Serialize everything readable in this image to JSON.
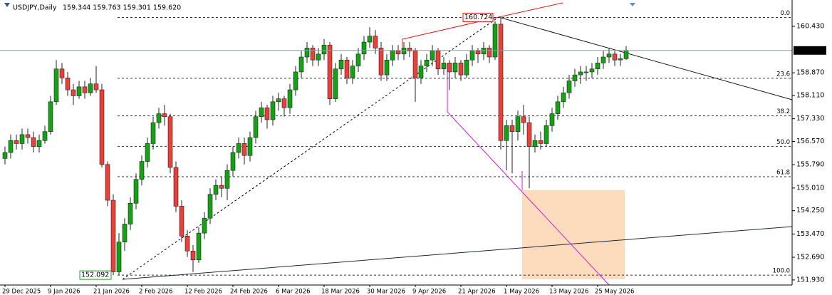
{
  "chart_data": {
    "type": "candlestick",
    "symbol": "USDJPY,Daily",
    "header_ohlc": "159.344 159.763 159.301 159.620",
    "bull_color": "#12a312",
    "bear_color": "#e8403a",
    "ylim": [
      151.76,
      161.31
    ],
    "yticks": [
      {
        "value": 160.43,
        "label": "160.430"
      },
      {
        "value": 158.87,
        "label": "158.870"
      },
      {
        "value": 158.11,
        "label": "158.110"
      },
      {
        "value": 157.33,
        "label": "157.330"
      },
      {
        "value": 156.57,
        "label": "156.570"
      },
      {
        "value": 155.79,
        "label": "155.790"
      },
      {
        "value": 155.01,
        "label": "155.010"
      },
      {
        "value": 154.25,
        "label": "154.250"
      },
      {
        "value": 153.47,
        "label": "153.470"
      },
      {
        "value": 152.69,
        "label": "152.690"
      },
      {
        "value": 151.93,
        "label": "151.930"
      }
    ],
    "current_price": {
      "value": 159.62,
      "label": "159.620"
    },
    "fib": {
      "high": 160.724,
      "low": 152.092,
      "levels": [
        {
          "value": 0,
          "label": "0.0"
        },
        23.6,
        38.2,
        {
          "value": 50,
          "label": "50.0"
        },
        61.8,
        {
          "value": 100,
          "label": "100.0"
        }
      ]
    },
    "categories": [
      "29 Dec 2025",
      null,
      null,
      null,
      null,
      null,
      null,
      null,
      "9 Jan 2026",
      null,
      null,
      null,
      null,
      null,
      null,
      null,
      "21 Jan 2026",
      null,
      null,
      null,
      null,
      null,
      null,
      null,
      "2 Feb 2026",
      null,
      null,
      null,
      null,
      null,
      null,
      null,
      "12 Feb 2026",
      null,
      null,
      null,
      null,
      null,
      null,
      null,
      "24 Feb 2026",
      null,
      null,
      null,
      null,
      null,
      null,
      null,
      "6 Mar 2026",
      null,
      null,
      null,
      null,
      null,
      null,
      null,
      "18 Mar 2026",
      null,
      null,
      null,
      null,
      null,
      null,
      null,
      "30 Mar 2026",
      null,
      null,
      null,
      null,
      null,
      null,
      null,
      "9 Apr 2026",
      null,
      null,
      null,
      null,
      null,
      null,
      null,
      "21 Apr 2026",
      null,
      null,
      null,
      null,
      null,
      null,
      null,
      "1 May 2026",
      null,
      null,
      null,
      null,
      null,
      null,
      null,
      "13 May 2026",
      null,
      null,
      null,
      null,
      null,
      null,
      null,
      "25 May 2026",
      null,
      null,
      null,
      null,
      null
    ],
    "candles": [
      [
        156.0,
        156.4,
        155.8,
        156.2
      ],
      [
        156.2,
        156.8,
        156.0,
        156.6
      ],
      [
        156.6,
        156.8,
        156.3,
        156.5
      ],
      [
        156.5,
        157.0,
        156.3,
        156.8
      ],
      [
        156.8,
        157.0,
        156.5,
        156.7
      ],
      [
        156.7,
        156.9,
        156.2,
        156.4
      ],
      [
        156.4,
        156.8,
        156.2,
        156.6
      ],
      [
        156.6,
        157.1,
        156.5,
        156.9
      ],
      [
        156.9,
        158.1,
        156.8,
        157.9
      ],
      [
        157.9,
        159.3,
        157.8,
        159.0
      ],
      [
        159.0,
        159.2,
        158.5,
        158.7
      ],
      [
        158.7,
        158.9,
        158.1,
        158.3
      ],
      [
        158.3,
        158.5,
        157.8,
        158.1
      ],
      [
        158.1,
        158.6,
        158.0,
        158.4
      ],
      [
        158.4,
        158.6,
        158.0,
        158.2
      ],
      [
        158.2,
        158.7,
        158.1,
        158.5
      ],
      [
        158.5,
        159.1,
        158.2,
        158.3
      ],
      [
        158.3,
        158.5,
        155.7,
        155.8
      ],
      [
        155.8,
        155.9,
        154.4,
        154.6
      ],
      [
        154.6,
        154.8,
        152.092,
        152.2
      ],
      [
        152.2,
        153.5,
        152.1,
        153.2
      ],
      [
        153.2,
        154.0,
        152.9,
        153.8
      ],
      [
        153.8,
        154.7,
        153.6,
        154.5
      ],
      [
        154.5,
        155.5,
        154.3,
        155.3
      ],
      [
        155.3,
        156.1,
        155.1,
        155.9
      ],
      [
        155.9,
        156.7,
        155.7,
        156.5
      ],
      [
        156.5,
        157.4,
        156.3,
        157.2
      ],
      [
        157.2,
        157.7,
        157.0,
        157.5
      ],
      [
        157.5,
        157.8,
        157.1,
        157.4
      ],
      [
        157.4,
        157.5,
        155.5,
        155.7
      ],
      [
        155.7,
        155.9,
        154.2,
        154.4
      ],
      [
        154.4,
        154.6,
        153.2,
        153.4
      ],
      [
        153.4,
        153.6,
        152.7,
        152.9
      ],
      [
        152.9,
        153.1,
        152.2,
        152.6
      ],
      [
        152.6,
        153.7,
        152.5,
        153.5
      ],
      [
        153.5,
        154.2,
        153.3,
        154.0
      ],
      [
        154.0,
        155.0,
        153.8,
        154.8
      ],
      [
        154.8,
        155.3,
        154.6,
        155.1
      ],
      [
        155.1,
        155.4,
        154.7,
        155.0
      ],
      [
        155.0,
        155.8,
        154.6,
        155.6
      ],
      [
        155.6,
        156.4,
        155.4,
        156.2
      ],
      [
        156.2,
        156.7,
        156.0,
        156.5
      ],
      [
        156.5,
        156.7,
        155.8,
        156.1
      ],
      [
        156.1,
        156.9,
        155.9,
        156.7
      ],
      [
        156.7,
        157.6,
        156.5,
        157.4
      ],
      [
        157.4,
        157.9,
        157.2,
        157.7
      ],
      [
        157.7,
        157.8,
        157.0,
        157.3
      ],
      [
        157.3,
        158.1,
        157.1,
        157.9
      ],
      [
        157.9,
        158.2,
        157.6,
        158.0
      ],
      [
        158.0,
        158.1,
        157.4,
        157.7
      ],
      [
        157.7,
        158.5,
        157.5,
        158.3
      ],
      [
        158.3,
        159.1,
        158.1,
        158.9
      ],
      [
        158.9,
        159.6,
        158.7,
        159.4
      ],
      [
        159.4,
        159.9,
        159.2,
        159.7
      ],
      [
        159.7,
        159.8,
        159.1,
        159.3
      ],
      [
        159.3,
        159.7,
        159.1,
        159.5
      ],
      [
        159.5,
        160.0,
        159.3,
        159.8
      ],
      [
        159.8,
        159.9,
        157.8,
        158.0
      ],
      [
        158.0,
        159.2,
        157.9,
        159.0
      ],
      [
        159.0,
        159.5,
        158.8,
        159.3
      ],
      [
        159.3,
        159.4,
        158.5,
        158.7
      ],
      [
        158.7,
        159.3,
        158.5,
        159.1
      ],
      [
        159.1,
        159.7,
        158.9,
        159.5
      ],
      [
        159.5,
        160.1,
        159.3,
        159.9
      ],
      [
        159.9,
        160.4,
        159.7,
        160.1
      ],
      [
        160.1,
        160.3,
        159.5,
        159.7
      ],
      [
        159.7,
        159.9,
        158.6,
        158.8
      ],
      [
        158.8,
        159.5,
        158.6,
        159.3
      ],
      [
        159.3,
        159.8,
        159.1,
        159.6
      ],
      [
        159.6,
        159.8,
        159.3,
        159.5
      ],
      [
        159.5,
        159.9,
        159.3,
        159.7
      ],
      [
        159.7,
        159.9,
        159.4,
        159.6
      ],
      [
        159.6,
        159.7,
        157.9,
        158.7
      ],
      [
        158.7,
        159.3,
        158.5,
        159.1
      ],
      [
        159.1,
        159.5,
        158.9,
        159.3
      ],
      [
        159.3,
        159.8,
        159.1,
        159.6
      ],
      [
        159.6,
        159.7,
        158.8,
        159.0
      ],
      [
        159.0,
        159.4,
        158.8,
        159.2
      ],
      [
        159.2,
        159.3,
        158.3,
        158.9
      ],
      [
        158.9,
        159.4,
        158.7,
        159.2
      ],
      [
        159.2,
        159.3,
        158.6,
        158.8
      ],
      [
        158.8,
        159.5,
        158.7,
        159.3
      ],
      [
        159.3,
        159.8,
        159.1,
        159.6
      ],
      [
        159.6,
        159.7,
        159.2,
        159.5
      ],
      [
        159.5,
        159.9,
        159.3,
        159.7
      ],
      [
        159.7,
        159.8,
        159.2,
        159.4
      ],
      [
        159.4,
        160.6,
        159.3,
        160.5
      ],
      [
        160.5,
        160.724,
        156.3,
        156.6
      ],
      [
        156.6,
        157.3,
        155.6,
        157.1
      ],
      [
        157.1,
        157.3,
        155.5,
        156.9
      ],
      [
        156.9,
        157.6,
        156.6,
        157.4
      ],
      [
        157.4,
        157.8,
        156.8,
        157.2
      ],
      [
        157.2,
        157.4,
        155.0,
        156.4
      ],
      [
        156.4,
        156.8,
        156.2,
        156.6
      ],
      [
        156.6,
        156.9,
        156.3,
        156.5
      ],
      [
        156.5,
        157.3,
        156.4,
        157.1
      ],
      [
        157.1,
        157.7,
        156.9,
        157.5
      ],
      [
        157.5,
        158.1,
        157.3,
        157.9
      ],
      [
        157.9,
        158.4,
        157.7,
        158.2
      ],
      [
        158.2,
        158.8,
        158.0,
        158.6
      ],
      [
        158.6,
        159.0,
        158.4,
        158.8
      ],
      [
        158.8,
        159.1,
        158.5,
        158.9
      ],
      [
        158.9,
        159.1,
        158.6,
        158.9
      ],
      [
        158.9,
        159.2,
        158.7,
        159.0
      ],
      [
        159.0,
        159.4,
        158.8,
        159.2
      ],
      [
        159.2,
        159.6,
        159.0,
        159.4
      ],
      [
        159.4,
        159.7,
        159.2,
        159.5
      ],
      [
        159.5,
        159.6,
        159.1,
        159.3
      ],
      [
        159.3,
        159.5,
        159.1,
        159.344
      ],
      [
        159.344,
        159.763,
        159.301,
        159.62
      ]
    ]
  }
}
